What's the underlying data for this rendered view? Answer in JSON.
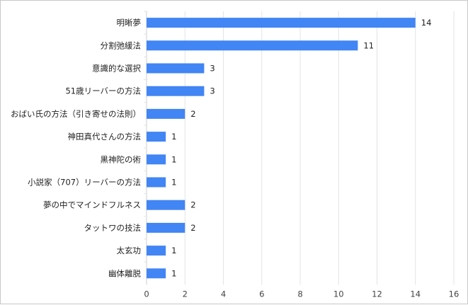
{
  "chart_data": {
    "type": "bar",
    "orientation": "horizontal",
    "categories": [
      "明晰夢",
      "分割弛緩法",
      "意識的な選択",
      "51歳リーバーの方法",
      "おばい氏の方法（引き寄せの法則）",
      "神田真代さんの方法",
      "黒神陀の術",
      "小説家（707）リーバーの方法",
      "夢の中でマインドフルネス",
      "タットワの技法",
      "太玄功",
      "幽体離脱"
    ],
    "values": [
      14,
      11,
      3,
      3,
      2,
      1,
      1,
      1,
      2,
      2,
      1,
      1
    ],
    "xlim": [
      0,
      16
    ],
    "xticks": [
      0,
      2,
      4,
      6,
      8,
      10,
      12,
      14,
      16
    ],
    "grid": true,
    "data_labels": true,
    "colors": {
      "bar": "#4285f4",
      "grid": "#e3e3e3"
    }
  }
}
